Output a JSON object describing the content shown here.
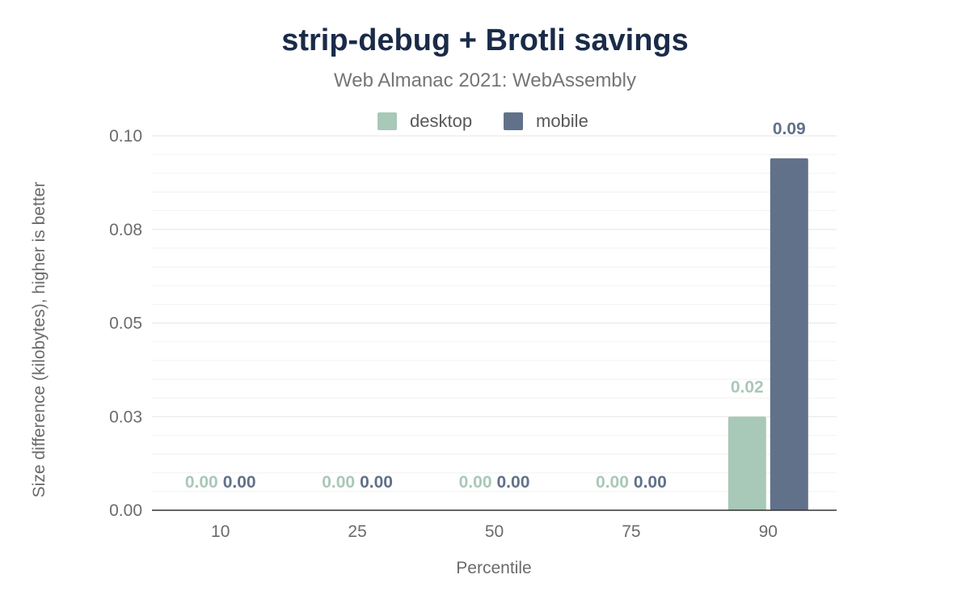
{
  "chart_data": {
    "type": "bar",
    "title": "strip-debug + Brotli savings",
    "subtitle": "Web Almanac 2021: WebAssembly",
    "xlabel": "Percentile",
    "ylabel": "Size difference (kilobytes), higher is better",
    "categories": [
      "10",
      "25",
      "50",
      "75",
      "90"
    ],
    "series": [
      {
        "name": "desktop",
        "color": "#a8c8b8",
        "values": [
          0,
          0,
          0,
          0,
          0.025
        ],
        "labels": [
          "0.00",
          "0.00",
          "0.00",
          "0.00",
          "0.02"
        ]
      },
      {
        "name": "mobile",
        "color": "#617189",
        "values": [
          0,
          0,
          0,
          0,
          0.094
        ],
        "labels": [
          "0.00",
          "0.00",
          "0.00",
          "0.00",
          "0.09"
        ]
      }
    ],
    "ylim": [
      0,
      0.1
    ],
    "yticks": [
      {
        "value": 0,
        "label": "0.00"
      },
      {
        "value": 0.025,
        "label": "0.03"
      },
      {
        "value": 0.05,
        "label": "0.05"
      },
      {
        "value": 0.075,
        "label": "0.08"
      },
      {
        "value": 0.1,
        "label": "0.10"
      }
    ],
    "legend_position": "top-center",
    "grid": true
  }
}
